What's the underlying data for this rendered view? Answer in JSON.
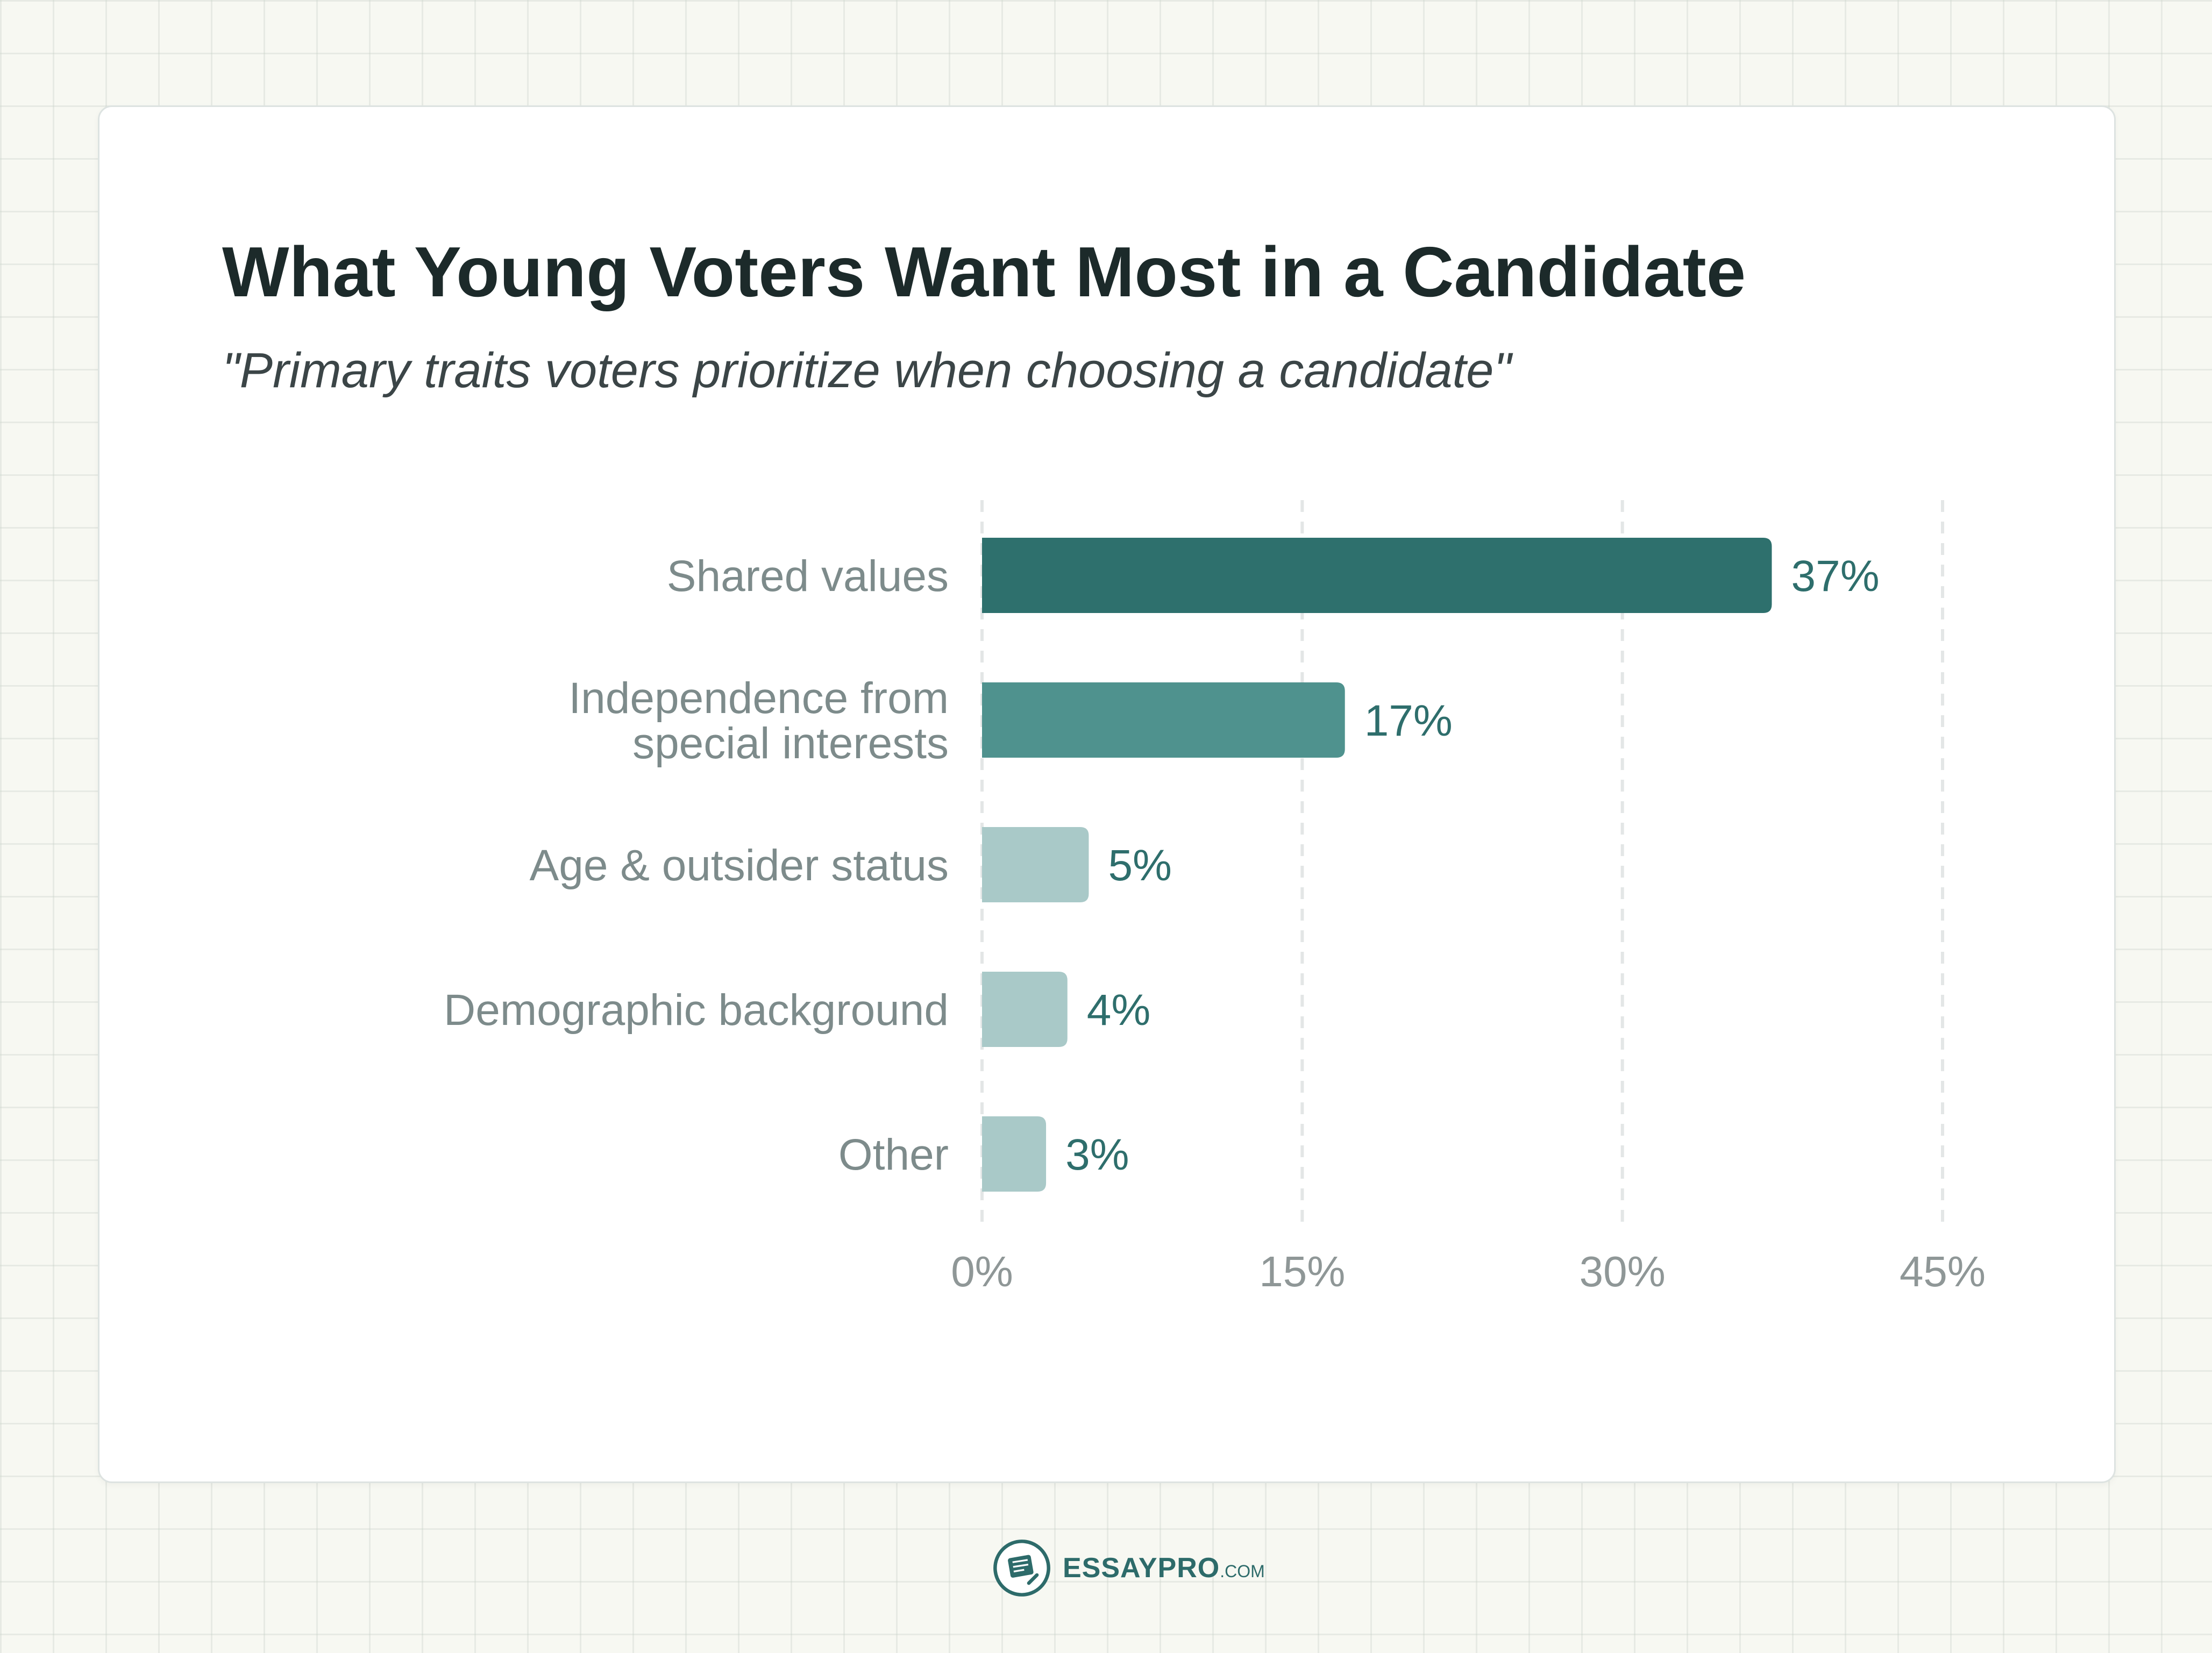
{
  "header": {
    "title": "What Young Voters Want Most in a Candidate",
    "subtitle": "\"Primary traits voters prioritize when choosing a candidate\""
  },
  "colors": {
    "bar_strong": "#2e706d",
    "bar_medium": "#4f928e",
    "bar_light": "#a9c9c8",
    "value_text": "#2e6e6c",
    "category_text": "#7d8b8b",
    "grid": "#e3e6e6"
  },
  "chart_data": {
    "type": "bar",
    "orientation": "horizontal",
    "title": "What Young Voters Want Most in a Candidate",
    "subtitle": "\"Primary traits voters prioritize when choosing a candidate\"",
    "categories": [
      "Shared values",
      "Independence from special interests",
      "Age & outsider status",
      "Demographic background",
      "Other"
    ],
    "category_lines": [
      [
        "Shared values"
      ],
      [
        "Independence from",
        "special interests"
      ],
      [
        "Age & outsider status"
      ],
      [
        "Demographic background"
      ],
      [
        "Other"
      ]
    ],
    "values": [
      37,
      17,
      5,
      4,
      3
    ],
    "value_labels": [
      "37%",
      "17%",
      "5%",
      "4%",
      "3%"
    ],
    "bar_colors": [
      "#2e706d",
      "#4f928e",
      "#a9c9c8",
      "#a9c9c8",
      "#a9c9c8"
    ],
    "xlim": [
      0,
      45
    ],
    "xticks": [
      0,
      15,
      30,
      45
    ],
    "xtick_labels": [
      "0%",
      "15%",
      "30%",
      "45%"
    ],
    "xlabel": "",
    "ylabel": "",
    "grid": "vertical dashed"
  },
  "footer": {
    "logo_icon": "essaypro-logo-icon",
    "brand_main": "ESSAYPRO",
    "brand_suffix": ".COM"
  }
}
